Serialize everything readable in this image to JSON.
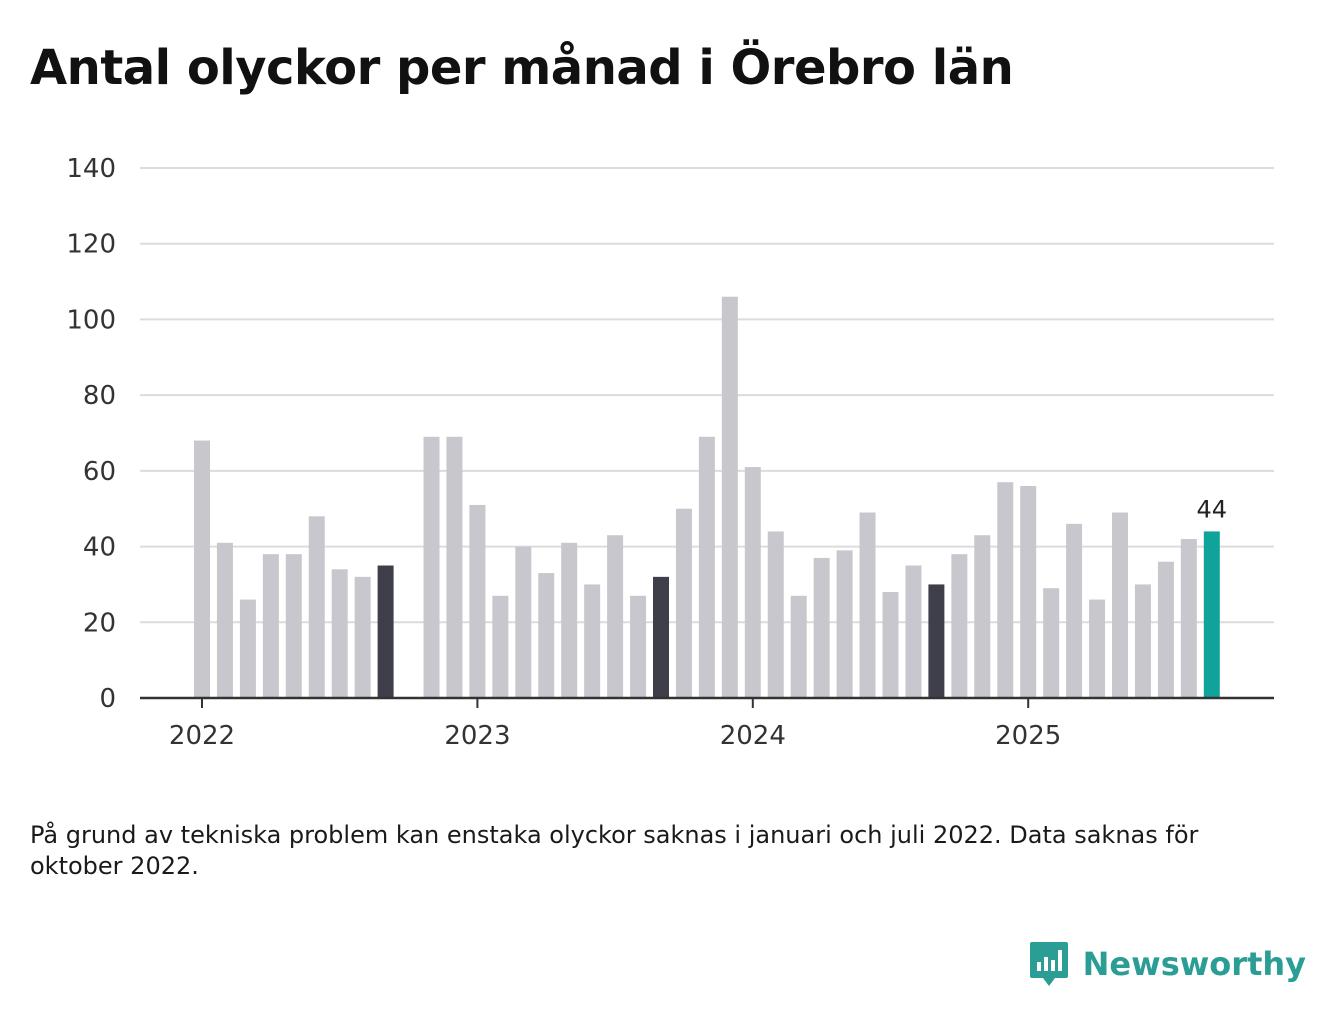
{
  "title": "Antal olyckor per månad i Örebro län",
  "note": "På grund av tekniska problem kan enstaka olyckor saknas i januari och juli 2022. Data saknas för oktober 2022.",
  "brand": {
    "name": "Newsworthy",
    "icon": "newsworthy-logo-icon"
  },
  "colors": {
    "bar": "#c8c7cd",
    "highlight": "#3f3f4c",
    "latest": "#0fa39b",
    "grid": "#dcdcdc",
    "axis": "#333333"
  },
  "chart_data": {
    "type": "bar",
    "title": "Antal olyckor per månad i Örebro län",
    "xlabel": "",
    "ylabel": "",
    "ylim": [
      0,
      140
    ],
    "yticks": [
      "0",
      "20",
      "40",
      "60",
      "80",
      "100",
      "120",
      "140"
    ],
    "year_labels": [
      "2022",
      "2023",
      "2024",
      "2025"
    ],
    "categories": [
      "2022-01",
      "2022-02",
      "2022-03",
      "2022-04",
      "2022-05",
      "2022-06",
      "2022-07",
      "2022-08",
      "2022-09",
      "2022-10",
      "2022-11",
      "2022-12",
      "2023-01",
      "2023-02",
      "2023-03",
      "2023-04",
      "2023-05",
      "2023-06",
      "2023-07",
      "2023-08",
      "2023-09",
      "2023-10",
      "2023-11",
      "2023-12",
      "2024-01",
      "2024-02",
      "2024-03",
      "2024-04",
      "2024-05",
      "2024-06",
      "2024-07",
      "2024-08",
      "2024-09",
      "2024-10",
      "2024-11",
      "2024-12",
      "2025-01",
      "2025-02",
      "2025-03",
      "2025-04",
      "2025-05",
      "2025-06",
      "2025-07",
      "2025-08",
      "2025-09"
    ],
    "values": [
      68,
      41,
      26,
      38,
      38,
      48,
      34,
      32,
      35,
      null,
      69,
      69,
      51,
      27,
      40,
      33,
      41,
      30,
      43,
      27,
      32,
      50,
      69,
      106,
      61,
      44,
      27,
      37,
      39,
      49,
      28,
      35,
      30,
      38,
      43,
      57,
      56,
      29,
      46,
      26,
      49,
      30,
      36,
      42,
      44
    ],
    "highlighted": [
      "2022-09",
      "2023-09",
      "2024-09"
    ],
    "latest": "2025-09",
    "latest_label": "44"
  }
}
